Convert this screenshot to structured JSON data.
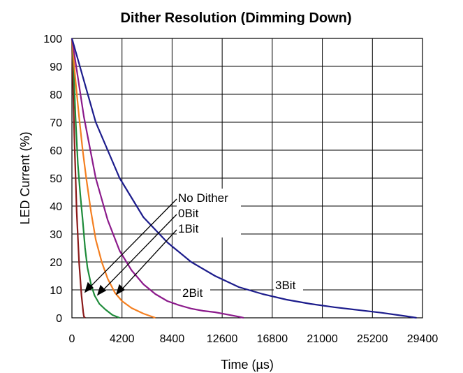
{
  "chart_data": {
    "type": "line",
    "title": "Dither Resolution (Dimming Down)",
    "xlabel": "Time (µs)",
    "ylabel": "LED Current (%)",
    "xlim": [
      0,
      29400
    ],
    "ylim": [
      0,
      100
    ],
    "xticks": [
      0,
      4200,
      8400,
      12600,
      16800,
      21000,
      25200,
      29400
    ],
    "xtick_labels": [
      "0",
      "4200",
      "8400",
      "12600",
      "16800",
      "21000",
      "25200",
      "29400"
    ],
    "yticks": [
      0,
      10,
      20,
      30,
      40,
      50,
      60,
      70,
      80,
      90,
      100
    ],
    "ytick_labels": [
      "0",
      "10",
      "20",
      "30",
      "40",
      "50",
      "60",
      "70",
      "80",
      "90",
      "100"
    ],
    "grid": true,
    "legend": "none",
    "series": [
      {
        "name": "No Dither",
        "color": "#8b1a1a",
        "x": [
          0,
          200,
          400,
          600,
          800,
          950,
          1000,
          1100
        ],
        "y": [
          100,
          65,
          38,
          20,
          8,
          2,
          0.5,
          0
        ]
      },
      {
        "name": "0Bit",
        "color": "#1e8b3a",
        "x": [
          0,
          150,
          300,
          500,
          700,
          900,
          1100,
          1300,
          1600,
          1900,
          2300,
          2800,
          3400,
          4000
        ],
        "y": [
          100,
          88,
          72,
          55,
          44,
          35,
          25,
          18,
          12,
          8,
          5,
          3,
          1,
          0
        ]
      },
      {
        "name": "1Bit",
        "color": "#f47f20",
        "x": [
          0,
          300,
          600,
          900,
          1200,
          1600,
          2000,
          2500,
          3000,
          3600,
          4200,
          5000,
          6000,
          7000
        ],
        "y": [
          100,
          85,
          72,
          60,
          50,
          38,
          28,
          20,
          14,
          9,
          6,
          3.5,
          1.5,
          0
        ]
      },
      {
        "name": "2Bit",
        "color": "#8b1a8b",
        "x": [
          0,
          1000,
          2000,
          3000,
          4000,
          5000,
          6000,
          7000,
          8000,
          9000,
          10000,
          11000,
          12000,
          13000,
          14000,
          14400
        ],
        "y": [
          100,
          72,
          50,
          35,
          24,
          17,
          12,
          8.5,
          6,
          4.5,
          3.3,
          2.5,
          2,
          1.2,
          0.4,
          0
        ]
      },
      {
        "name": "3Bit",
        "color": "#1c1c8c",
        "x": [
          0,
          2000,
          4000,
          6000,
          8000,
          10000,
          12000,
          14000,
          16000,
          18000,
          20000,
          22000,
          24000,
          26000,
          28000,
          28900
        ],
        "y": [
          100,
          70,
          50,
          36,
          27,
          20,
          15,
          11,
          8.5,
          6.5,
          5,
          3.8,
          2.8,
          1.8,
          0.6,
          0
        ]
      }
    ],
    "annotations": [
      {
        "text": "No Dither",
        "color": "#8b1a1a"
      },
      {
        "text": "0Bit",
        "color": "#1e8b3a"
      },
      {
        "text": "1Bit",
        "color": "#f47f20"
      },
      {
        "text": "2Bit",
        "color": "#8b1a8b"
      },
      {
        "text": "3Bit",
        "color": "#1c1c8c"
      }
    ]
  }
}
